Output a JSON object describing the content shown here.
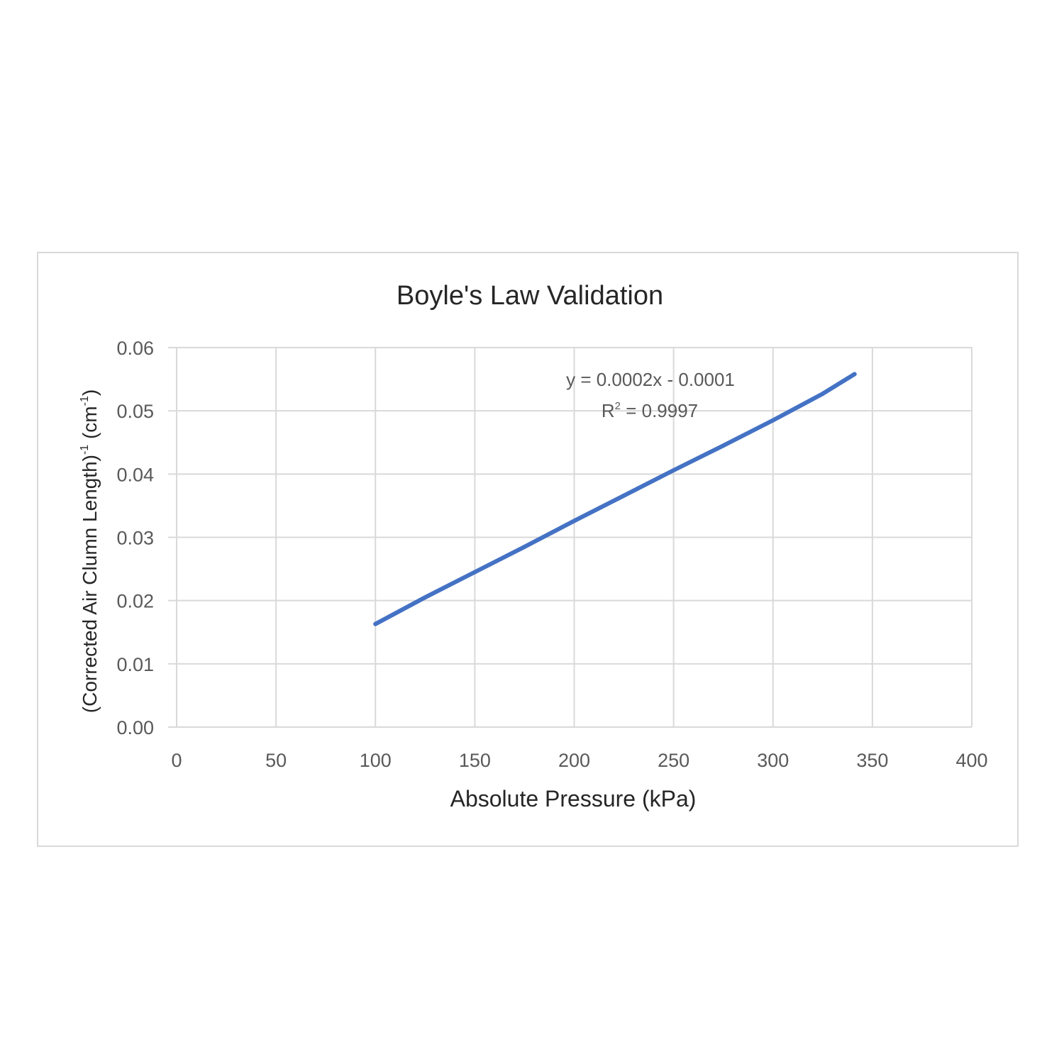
{
  "chart_data": {
    "type": "line",
    "title": "Boyle's Law Validation",
    "xlabel": "Absolute Pressure (kPa)",
    "ylabel": {
      "prefix": "(Corrected Air Clumn Length)",
      "sup1": "-1",
      "middle": " (cm",
      "sup2": "-1",
      "suffix": ")"
    },
    "xlim": [
      0,
      400
    ],
    "ylim": [
      0,
      0.06
    ],
    "x_ticks": [
      "0",
      "50",
      "100",
      "150",
      "200",
      "250",
      "300",
      "350",
      "400"
    ],
    "y_ticks": [
      "0.00",
      "0.01",
      "0.02",
      "0.03",
      "0.04",
      "0.05",
      "0.06"
    ],
    "grid": true,
    "series": [
      {
        "x": [
          100,
          125,
          150,
          175,
          200,
          225,
          250,
          275,
          300,
          325,
          341
        ],
        "y": [
          0.0163,
          0.0205,
          0.0245,
          0.0285,
          0.0326,
          0.0366,
          0.0406,
          0.0445,
          0.0485,
          0.0527,
          0.0558
        ],
        "color": "#4472c4"
      }
    ],
    "annotations": {
      "equation": "y = 0.0002x  - 0.0001",
      "r2_base": "R",
      "r2_sup": "2",
      "r2_value": " = 0.9997"
    }
  },
  "colors": {
    "line": "#4472c4",
    "grid": "#d9d9d9",
    "title": "#262626",
    "tick": "#595959",
    "annotation": "#595959"
  }
}
